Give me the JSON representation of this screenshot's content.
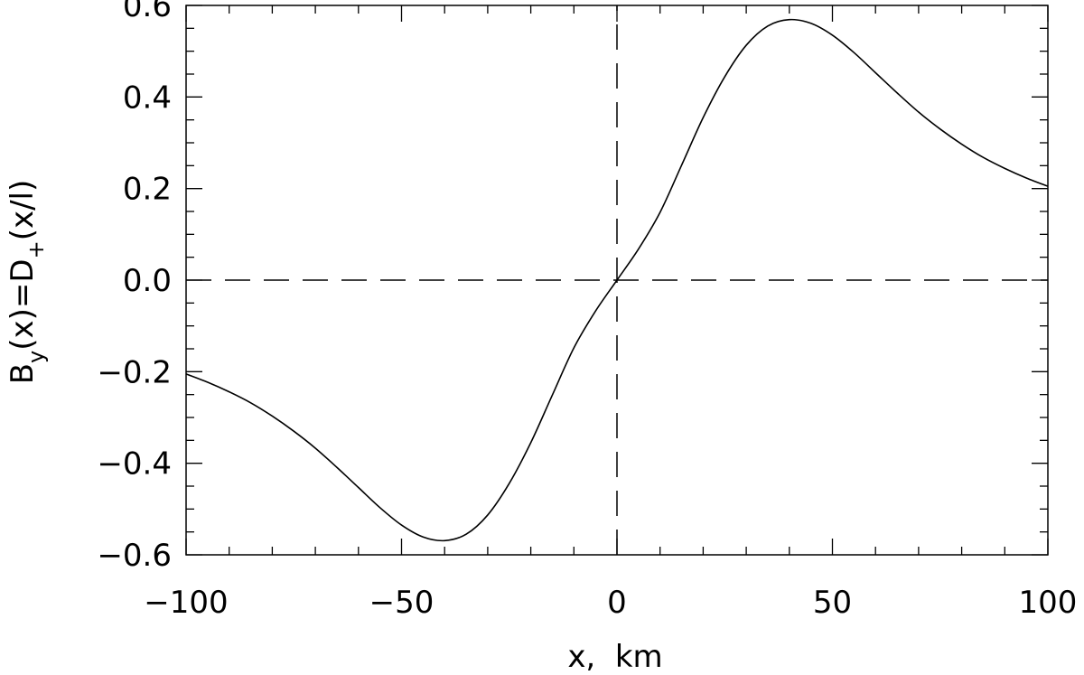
{
  "chart_data": {
    "type": "line",
    "xlabel": "x,  km",
    "ylabel": {
      "parts": [
        "B",
        "y",
        "(x)=D",
        "+",
        "(x/l)"
      ]
    },
    "xlim": [
      -100,
      100
    ],
    "ylim": [
      -0.6,
      0.6
    ],
    "x_ticks": [
      -100,
      -50,
      0,
      50,
      100
    ],
    "x_tick_labels": [
      "−100",
      "−50",
      "0",
      "50",
      "100"
    ],
    "x_minor_step": 10,
    "y_ticks": [
      -0.6,
      -0.4,
      -0.2,
      0.0,
      0.2,
      0.4,
      0.6
    ],
    "y_tick_labels": [
      "−0.6",
      "−0.4",
      "−0.2",
      "0.0",
      "0.2",
      "0.4",
      "0.6"
    ],
    "y_minor_step": 0.05,
    "grid": false,
    "reference_lines": [
      {
        "orientation": "horizontal",
        "value": 0.0,
        "style": "dashed"
      },
      {
        "orientation": "vertical",
        "value": 0,
        "style": "dashed"
      }
    ],
    "series": [
      {
        "x": [
          -100,
          -95,
          -90,
          -85,
          -80,
          -75,
          -70,
          -65,
          -60,
          -55,
          -50,
          -45,
          -40,
          -35,
          -30,
          -25,
          -20,
          -15,
          -10,
          -5,
          0,
          5,
          10,
          15,
          20,
          25,
          30,
          35,
          40,
          45,
          50,
          55,
          60,
          65,
          70,
          75,
          80,
          85,
          90,
          95,
          100
        ],
        "y": [
          -0.205,
          -0.223,
          -0.244,
          -0.268,
          -0.297,
          -0.33,
          -0.367,
          -0.409,
          -0.453,
          -0.497,
          -0.535,
          -0.561,
          -0.569,
          -0.555,
          -0.513,
          -0.444,
          -0.355,
          -0.251,
          -0.148,
          -0.068,
          0.0,
          0.068,
          0.148,
          0.251,
          0.355,
          0.444,
          0.513,
          0.555,
          0.569,
          0.561,
          0.535,
          0.497,
          0.453,
          0.409,
          0.367,
          0.33,
          0.297,
          0.268,
          0.244,
          0.223,
          0.205
        ],
        "color": "#000000"
      }
    ]
  }
}
